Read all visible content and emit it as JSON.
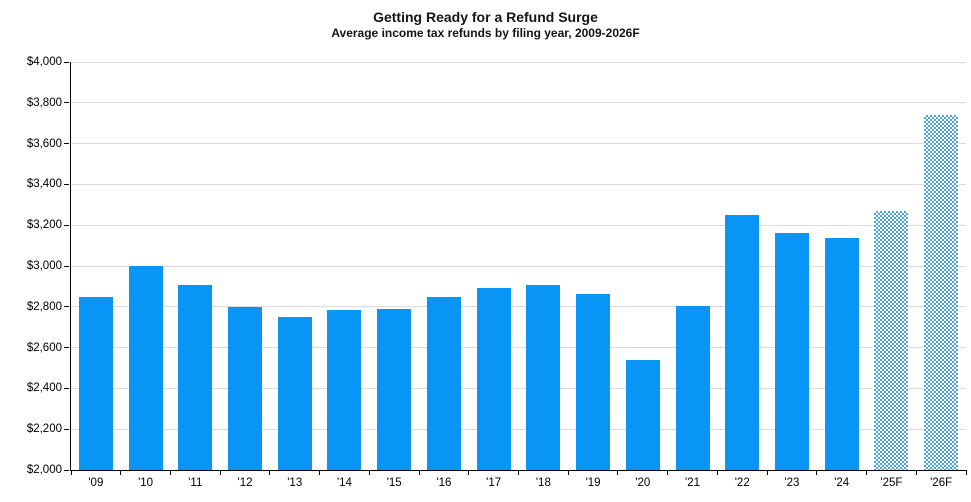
{
  "chart_data": {
    "type": "bar",
    "title": "Getting Ready for a Refund Surge",
    "subtitle": "Average income tax refunds by filing year, 2009-2026F",
    "categories": [
      "'09",
      "'10",
      "'11",
      "'12",
      "'13",
      "'14",
      "'15",
      "'16",
      "'17",
      "'18",
      "'19",
      "'20",
      "'21",
      "'22",
      "'23",
      "'24",
      "'25F",
      "'26F"
    ],
    "values": [
      2850,
      3000,
      2905,
      2800,
      2750,
      2785,
      2790,
      2850,
      2890,
      2905,
      2865,
      2540,
      2805,
      3250,
      3160,
      3135,
      3270,
      3740
    ],
    "forecast_flags": [
      false,
      false,
      false,
      false,
      false,
      false,
      false,
      false,
      false,
      false,
      false,
      false,
      false,
      false,
      false,
      false,
      true,
      true
    ],
    "xlabel": "",
    "ylabel": "",
    "ylim": [
      2000,
      4000
    ],
    "ytick_step": 200,
    "ytick_prefix": "$",
    "grid": true,
    "legend": "none",
    "colors": {
      "bar_solid": "#0995f6",
      "bar_forecast_checker": "#4aa2ec",
      "gridline": "#dcdcdc",
      "axis": "#000000"
    }
  }
}
